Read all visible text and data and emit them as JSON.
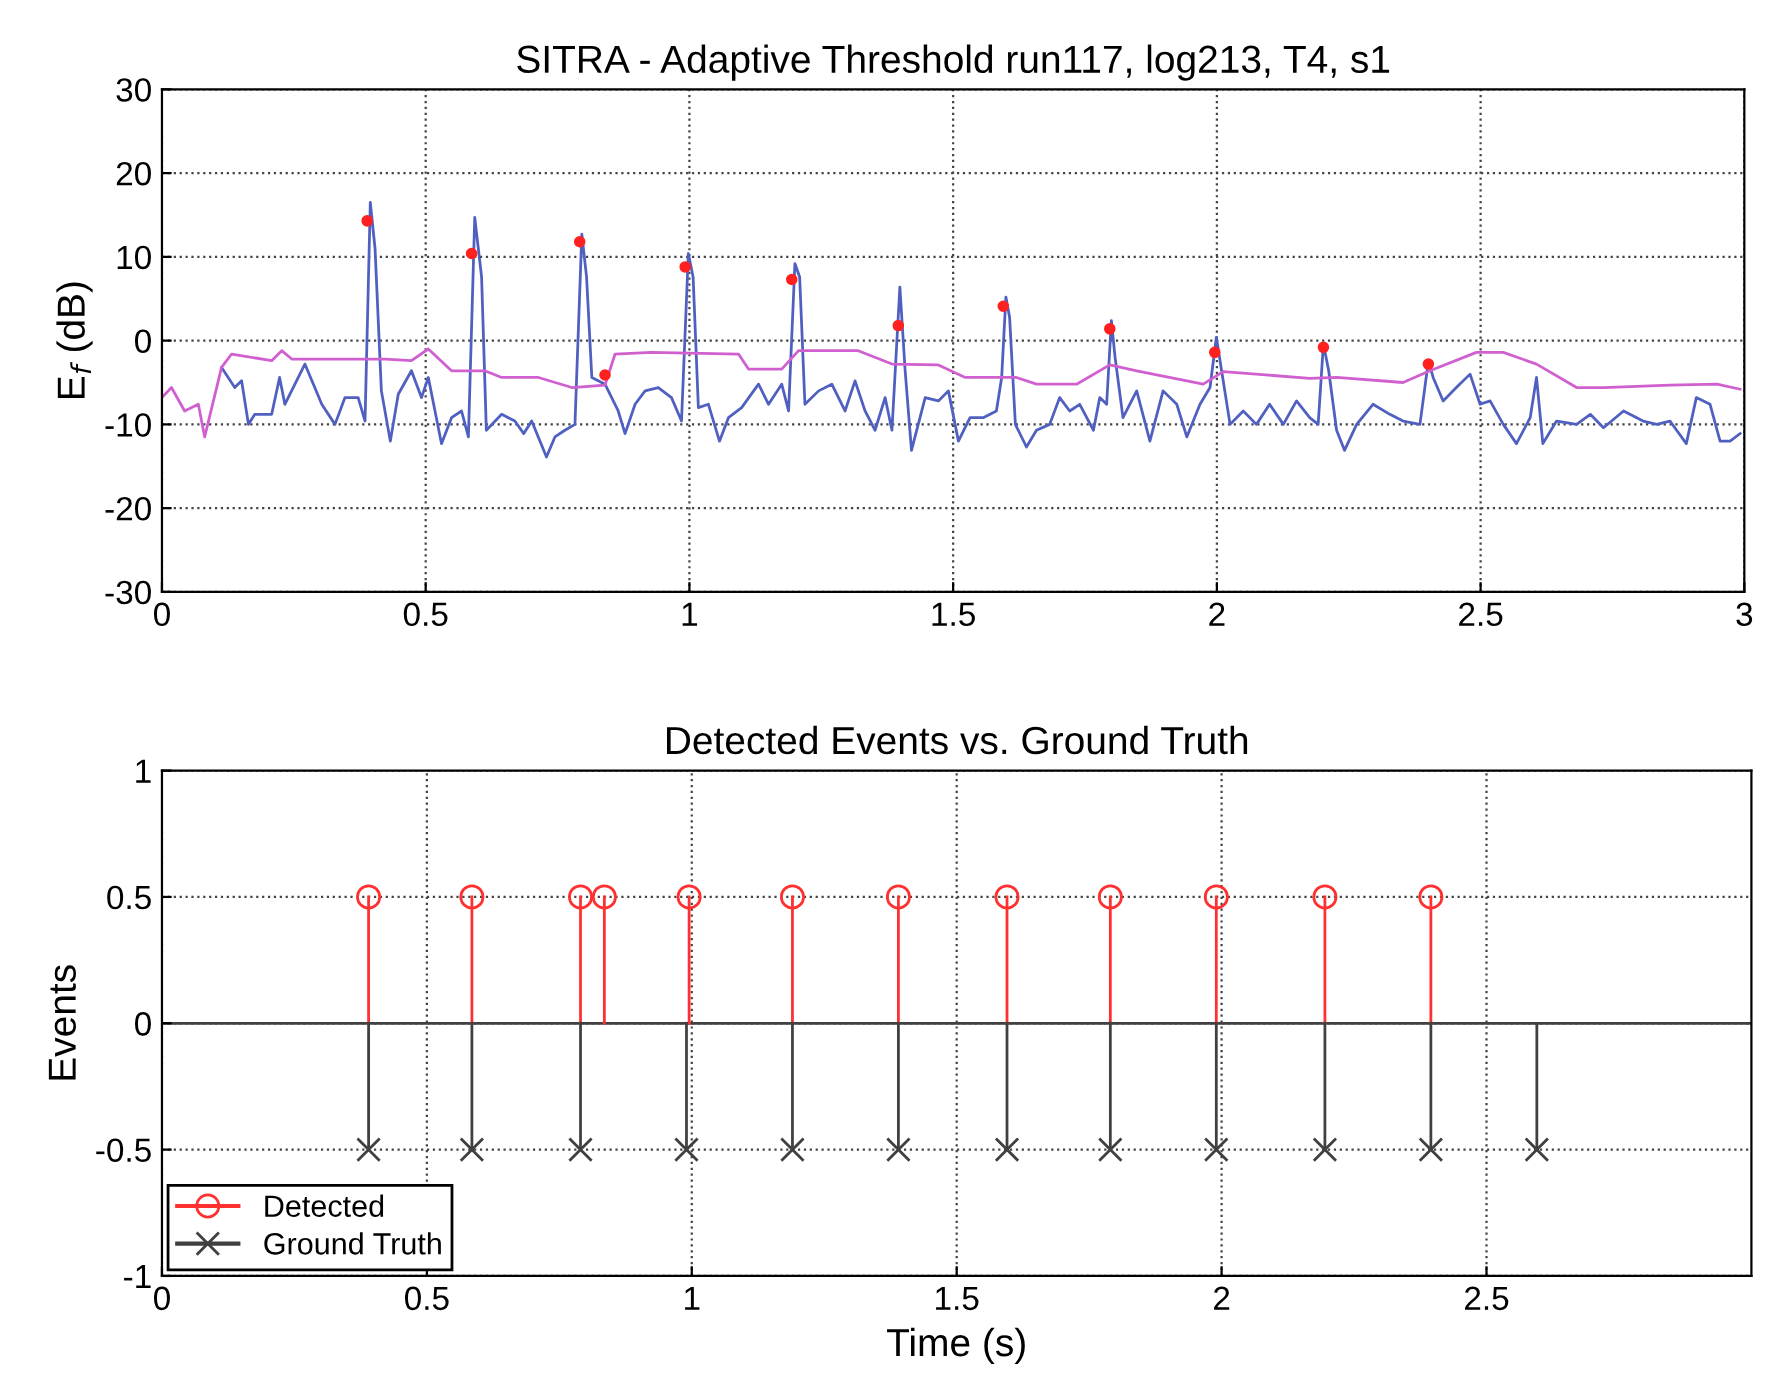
{
  "chart_data": [
    {
      "type": "line",
      "title": "SITRA - Adaptive Threshold run117, log213, T4, s1",
      "ylabel": "E$_{f}$ (dB)",
      "xlim": [
        0,
        3
      ],
      "ylim": [
        -30,
        30
      ],
      "xticks": [
        0,
        0.5,
        1,
        1.5,
        2,
        2.5,
        3
      ],
      "yticks": [
        -30,
        -20,
        -10,
        0,
        10,
        20,
        30
      ],
      "grid": true,
      "legend": false,
      "series": [
        {
          "color": "#5060c0",
          "x": [
            0.113,
            0.138,
            0.151,
            0.164,
            0.176,
            0.208,
            0.223,
            0.233,
            0.271,
            0.303,
            0.328,
            0.347,
            0.372,
            0.385,
            0.395,
            0.404,
            0.416,
            0.433,
            0.448,
            0.473,
            0.492,
            0.505,
            0.53,
            0.549,
            0.568,
            0.581,
            0.593,
            0.606,
            0.615,
            0.644,
            0.669,
            0.686,
            0.701,
            0.729,
            0.745,
            0.764,
            0.783,
            0.796,
            0.805,
            0.815,
            0.84,
            0.865,
            0.878,
            0.897,
            0.916,
            0.941,
            0.966,
            0.985,
            0.998,
            1.007,
            1.017,
            1.036,
            1.057,
            1.074,
            1.099,
            1.131,
            1.15,
            1.175,
            1.188,
            1.2,
            1.209,
            1.219,
            1.245,
            1.27,
            1.295,
            1.314,
            1.333,
            1.352,
            1.371,
            1.384,
            1.399,
            1.409,
            1.421,
            1.447,
            1.472,
            1.491,
            1.51,
            1.532,
            1.557,
            1.582,
            1.592,
            1.6,
            1.607,
            1.618,
            1.639,
            1.658,
            1.683,
            1.702,
            1.721,
            1.74,
            1.766,
            1.778,
            1.791,
            1.8,
            1.807,
            1.822,
            1.848,
            1.873,
            1.898,
            1.924,
            1.943,
            1.968,
            1.987,
            1.999,
            2.009,
            2.025,
            2.05,
            2.075,
            2.1,
            2.126,
            2.151,
            2.176,
            2.192,
            2.202,
            2.212,
            2.227,
            2.242,
            2.265,
            2.296,
            2.328,
            2.353,
            2.385,
            2.401,
            2.41,
            2.429,
            2.454,
            2.48,
            2.499,
            2.518,
            2.543,
            2.568,
            2.594,
            2.606,
            2.618,
            2.644,
            2.682,
            2.708,
            2.733,
            2.771,
            2.808,
            2.834,
            2.859,
            2.89,
            2.909,
            2.935,
            2.954,
            2.973,
            2.992
          ],
          "values": [
            -3.2,
            -5.6,
            -4.8,
            -10,
            -8.8,
            -8.8,
            -4.4,
            -7.6,
            -2.8,
            -7.6,
            -10,
            -6.8,
            -6.8,
            -9.6,
            16.5,
            11,
            -6,
            -12,
            -6.4,
            -3.6,
            -6.8,
            -4.4,
            -12.3,
            -9.2,
            -8.4,
            -11.5,
            14.7,
            7.6,
            -10.7,
            -8.8,
            -9.6,
            -11.1,
            -9.6,
            -13.9,
            -11.5,
            -10.7,
            -10,
            12.7,
            7.6,
            -4.4,
            -5.2,
            -8.4,
            -11.1,
            -7.6,
            -6,
            -5.6,
            -6.8,
            -9.6,
            10.4,
            7.6,
            -8,
            -7.6,
            -12,
            -9.2,
            -8,
            -5.2,
            -7.6,
            -5.2,
            -8.4,
            9.2,
            7.6,
            -7.6,
            -6,
            -5.2,
            -8.4,
            -4.8,
            -8.4,
            -10.7,
            -6.8,
            -10.7,
            6.4,
            -3.6,
            -13.1,
            -6.8,
            -7.2,
            -6,
            -12,
            -9.2,
            -9.2,
            -8.4,
            -4.4,
            5.2,
            2.8,
            -10,
            -12.7,
            -10.7,
            -10,
            -6.8,
            -8.4,
            -7.6,
            -10.7,
            -6.8,
            -7.6,
            2.4,
            -2,
            -9.2,
            -6,
            -12,
            -6,
            -7.6,
            -11.5,
            -7.6,
            -5.6,
            0.4,
            -3.6,
            -10,
            -8.4,
            -10,
            -7.6,
            -10,
            -7.2,
            -9.2,
            -10,
            -0.4,
            -3.6,
            -10.7,
            -13.1,
            -10,
            -7.6,
            -8.8,
            -9.6,
            -10,
            -2.4,
            -4.4,
            -7.2,
            -5.6,
            -4,
            -7.6,
            -7.2,
            -10,
            -12.3,
            -9.2,
            -4.4,
            -12.3,
            -9.6,
            -10,
            -8.8,
            -10.4,
            -8.4,
            -9.6,
            -10,
            -9.6,
            -12.3,
            -6.8,
            -7.6,
            -12,
            -12,
            -11.1
          ]
        },
        {
          "color": "#d060d0",
          "x": [
            0,
            0.018,
            0.043,
            0.069,
            0.081,
            0.113,
            0.132,
            0.208,
            0.227,
            0.246,
            0.423,
            0.473,
            0.505,
            0.549,
            0.612,
            0.644,
            0.714,
            0.777,
            0.84,
            0.859,
            0.928,
            1.093,
            1.112,
            1.175,
            1.207,
            1.32,
            1.384,
            1.472,
            1.523,
            1.62,
            1.658,
            1.734,
            1.797,
            1.848,
            1.974,
            2.012,
            2.176,
            2.227,
            2.353,
            2.404,
            2.492,
            2.543,
            2.606,
            2.682,
            2.733,
            2.859,
            2.948,
            2.992
          ],
          "values": [
            -6.8,
            -5.6,
            -8.4,
            -7.6,
            -11.5,
            -3.2,
            -1.6,
            -2.4,
            -1.2,
            -2.2,
            -2.2,
            -2.4,
            -1,
            -3.6,
            -3.6,
            -4.4,
            -4.4,
            -5.6,
            -5.3,
            -1.6,
            -1.4,
            -1.6,
            -3.4,
            -3.4,
            -1.2,
            -1.2,
            -2.8,
            -2.9,
            -4.4,
            -4.4,
            -5.2,
            -5.2,
            -2.9,
            -3.6,
            -5.2,
            -3.7,
            -4.5,
            -4.4,
            -5,
            -3.6,
            -1.4,
            -1.4,
            -2.8,
            -5.6,
            -5.6,
            -5.3,
            -5.2,
            -5.8
          ]
        },
        {
          "type": "scatter",
          "color": "#ff2020",
          "marker": "circle",
          "x": [
            0.389,
            0.587,
            0.792,
            0.84,
            0.992,
            1.194,
            1.396,
            1.595,
            1.797,
            1.996,
            2.202,
            2.401
          ],
          "values": [
            14.3,
            10.4,
            11.8,
            -4.1,
            8.8,
            7.3,
            1.8,
            4.1,
            1.4,
            -1.4,
            -0.8,
            -2.8
          ]
        }
      ]
    },
    {
      "type": "lollipop",
      "title": "Detected Events vs. Ground Truth",
      "xlabel": "Time (s)",
      "ylabel": "Events",
      "xlim": [
        0,
        3
      ],
      "ylim": [
        -1,
        1
      ],
      "xticks": [
        0,
        0.5,
        1,
        1.5,
        2,
        2.5
      ],
      "yticks": [
        -1,
        -0.5,
        0,
        0.5,
        1
      ],
      "grid": true,
      "legend": "bottom left",
      "series": [
        {
          "name": "Detected",
          "color": "#ff3030",
          "marker": "circle",
          "x": [
            0.39,
            0.585,
            0.79,
            0.835,
            0.995,
            1.19,
            1.39,
            1.595,
            1.79,
            1.99,
            2.195,
            2.395
          ],
          "values": [
            0.5,
            0.5,
            0.5,
            0.5,
            0.5,
            0.5,
            0.5,
            0.5,
            0.5,
            0.5,
            0.5,
            0.5
          ]
        },
        {
          "name": "Ground Truth",
          "color": "#404040",
          "marker": "cross",
          "x": [
            0.39,
            0.585,
            0.79,
            0.99,
            1.19,
            1.39,
            1.595,
            1.79,
            1.99,
            2.195,
            2.395,
            2.595
          ],
          "values": [
            -0.5,
            -0.5,
            -0.5,
            -0.5,
            -0.5,
            -0.5,
            -0.5,
            -0.5,
            -0.5,
            -0.5,
            -0.5,
            -0.5
          ]
        }
      ]
    }
  ]
}
